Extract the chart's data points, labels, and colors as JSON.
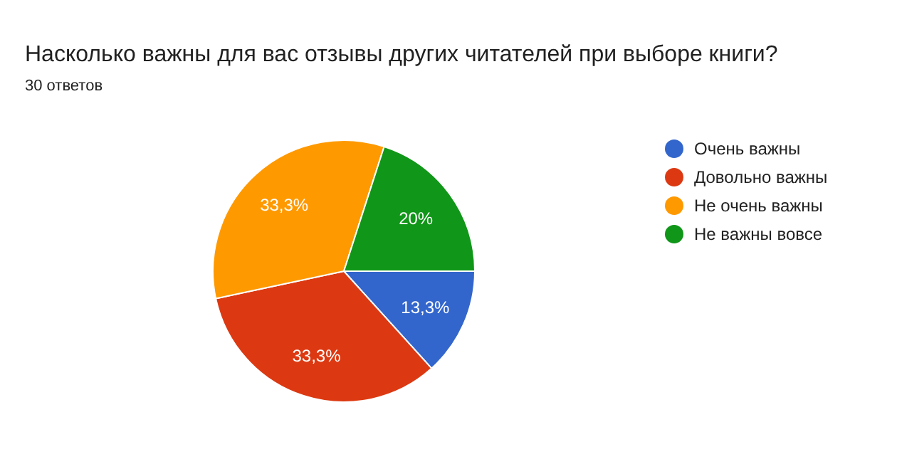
{
  "chart_data": {
    "type": "pie",
    "title": "Насколько важны для вас отзывы других читателей при выборе книги?",
    "subtitle": "30 ответов",
    "categories": [
      "Очень важны",
      "Довольно важны",
      "Не очень важны",
      "Не важны вовсе"
    ],
    "values": [
      13.3,
      33.3,
      33.3,
      20
    ],
    "value_labels": [
      "13,3%",
      "33,3%",
      "33,3%",
      "20%"
    ],
    "colors": [
      "#3366cc",
      "#dc3912",
      "#ff9900",
      "#109618"
    ],
    "legend": "right"
  }
}
